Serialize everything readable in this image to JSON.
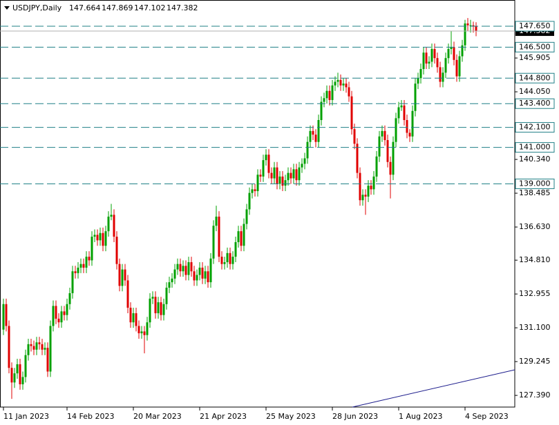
{
  "chart_data": {
    "type": "candlestick",
    "title": "USDJPY,Daily",
    "open": [
      131.0,
      132.4,
      131.2,
      128.9,
      128.1,
      128.6,
      129.1,
      128.0,
      128.4,
      129.6,
      130.2,
      130.1,
      129.9,
      130.3,
      130.2,
      129.9,
      130.0,
      128.7,
      131.2,
      132.3,
      131.6,
      131.4,
      132.0,
      131.8,
      132.4,
      133.0,
      134.2,
      134.1,
      134.4,
      134.6,
      134.4,
      135.0,
      134.8,
      136.1,
      136.2,
      135.9,
      136.3,
      135.6,
      136.4,
      137.2,
      137.3,
      136.1,
      134.6,
      133.4,
      134.3,
      133.7,
      132.2,
      131.4,
      131.9,
      131.2,
      130.8,
      130.9,
      130.7,
      131.4,
      132.7,
      132.8,
      131.9,
      132.5,
      131.8,
      132.4,
      133.3,
      133.6,
      133.8,
      134.3,
      134.6,
      134.2,
      134.5,
      134.0,
      134.7,
      134.2,
      133.7,
      134.0,
      134.4,
      133.8,
      134.2,
      133.6,
      134.9,
      136.7,
      137.2,
      135.0,
      134.6,
      134.7,
      135.2,
      134.6,
      135.0,
      135.8,
      136.4,
      135.6,
      136.8,
      137.6,
      138.5,
      138.7,
      138.6,
      139.5,
      139.4,
      140.3,
      140.6,
      139.6,
      139.3,
      139.9,
      139.0,
      139.4,
      138.9,
      139.2,
      139.6,
      139.3,
      139.8,
      139.2,
      139.9,
      140.1,
      140.4,
      141.3,
      141.9,
      141.7,
      141.3,
      142.5,
      143.5,
      143.7,
      144.1,
      143.6,
      144.4,
      144.6,
      144.7,
      144.4,
      144.5,
      144.3,
      143.8,
      142.0,
      141.2,
      139.6,
      138.1,
      138.4,
      138.3,
      138.9,
      138.7,
      139.4,
      140.5,
      141.6,
      141.9,
      141.4,
      140.2,
      139.5,
      141.3,
      142.6,
      143.2,
      143.3,
      142.5,
      141.8,
      141.6,
      143.0,
      144.5,
      144.8,
      145.3,
      146.2,
      145.6,
      145.7,
      146.4,
      145.9,
      145.4,
      144.6,
      145.1,
      145.9,
      146.4,
      146.5,
      145.8,
      144.9,
      146.0,
      146.6,
      147.8,
      147.7,
      147.7,
      147.664
    ],
    "high": [
      132.7,
      132.7,
      131.5,
      129.2,
      128.9,
      129.4,
      129.4,
      128.7,
      129.9,
      130.5,
      130.5,
      130.4,
      130.6,
      130.6,
      130.5,
      130.3,
      130.3,
      131.5,
      132.6,
      132.6,
      131.9,
      132.3,
      132.3,
      132.7,
      133.3,
      134.5,
      134.5,
      134.7,
      134.9,
      134.9,
      135.3,
      135.3,
      136.4,
      136.5,
      136.5,
      136.6,
      136.6,
      136.7,
      137.5,
      137.9,
      137.6,
      136.4,
      134.9,
      134.6,
      134.6,
      134.0,
      132.5,
      132.2,
      132.2,
      131.5,
      131.2,
      131.2,
      131.7,
      133.0,
      133.1,
      133.1,
      132.8,
      132.8,
      132.7,
      133.6,
      133.9,
      134.1,
      134.6,
      134.9,
      134.9,
      134.8,
      134.8,
      135.0,
      135.0,
      134.5,
      134.3,
      134.7,
      134.7,
      134.5,
      134.5,
      135.2,
      137.0,
      137.8,
      137.5,
      135.3,
      135.0,
      135.5,
      135.5,
      135.3,
      136.1,
      136.7,
      136.7,
      137.1,
      137.9,
      138.8,
      139.0,
      139.0,
      139.8,
      139.8,
      140.6,
      140.9,
      140.9,
      139.9,
      140.2,
      140.2,
      139.7,
      139.7,
      139.5,
      139.9,
      139.9,
      140.1,
      140.1,
      140.2,
      140.4,
      140.7,
      141.6,
      142.2,
      142.2,
      142.0,
      142.8,
      143.8,
      144.0,
      144.4,
      144.4,
      144.7,
      144.9,
      145.1,
      145.0,
      144.8,
      144.8,
      144.6,
      144.1,
      142.3,
      141.5,
      139.9,
      138.7,
      138.7,
      139.2,
      139.2,
      139.7,
      140.8,
      141.9,
      142.2,
      142.2,
      141.7,
      140.5,
      141.6,
      142.9,
      143.5,
      143.6,
      143.6,
      142.8,
      142.0,
      143.3,
      144.8,
      145.1,
      145.6,
      146.5,
      146.5,
      146.0,
      146.7,
      146.7,
      146.2,
      145.7,
      145.4,
      146.2,
      146.7,
      147.4,
      146.8,
      146.1,
      146.3,
      146.9,
      148.0,
      148.1,
      148.0,
      147.9,
      147.869
    ],
    "low": [
      130.7,
      130.9,
      128.6,
      127.2,
      127.8,
      128.3,
      127.7,
      127.7,
      128.1,
      129.3,
      129.8,
      129.6,
      129.6,
      129.9,
      129.6,
      129.6,
      128.4,
      128.4,
      130.9,
      131.3,
      131.1,
      131.1,
      131.5,
      131.5,
      132.1,
      132.7,
      133.8,
      133.8,
      134.1,
      134.1,
      134.1,
      134.5,
      134.5,
      135.8,
      135.6,
      135.6,
      135.3,
      135.3,
      136.1,
      137.0,
      135.8,
      134.3,
      133.1,
      133.1,
      133.4,
      131.9,
      131.1,
      131.1,
      130.9,
      130.5,
      130.5,
      129.7,
      130.4,
      131.1,
      132.4,
      131.6,
      131.6,
      131.5,
      131.5,
      132.1,
      133.0,
      133.3,
      133.5,
      134.0,
      133.9,
      133.9,
      133.7,
      133.7,
      133.9,
      133.4,
      133.4,
      133.7,
      133.5,
      133.5,
      133.3,
      133.3,
      134.6,
      136.4,
      134.7,
      134.3,
      134.3,
      134.4,
      134.3,
      134.3,
      134.7,
      135.5,
      135.3,
      135.3,
      136.5,
      137.3,
      138.2,
      138.3,
      138.3,
      139.1,
      139.1,
      140.0,
      139.3,
      139.0,
      139.0,
      138.7,
      138.7,
      138.6,
      138.6,
      138.9,
      139.0,
      139.0,
      138.9,
      138.9,
      139.6,
      139.8,
      140.1,
      141.0,
      141.4,
      141.0,
      141.0,
      142.2,
      143.2,
      143.4,
      143.3,
      143.3,
      144.1,
      144.3,
      144.1,
      144.1,
      144.0,
      143.5,
      141.7,
      140.9,
      139.3,
      137.8,
      137.8,
      137.3,
      138.0,
      138.4,
      138.4,
      139.1,
      140.2,
      141.3,
      141.1,
      139.9,
      138.2,
      139.2,
      141.0,
      142.3,
      143.0,
      142.2,
      141.5,
      141.3,
      141.3,
      142.7,
      144.2,
      144.5,
      145.0,
      145.3,
      145.3,
      145.4,
      145.6,
      145.1,
      144.3,
      144.3,
      144.8,
      145.6,
      146.1,
      145.5,
      144.6,
      144.6,
      145.7,
      146.3,
      147.4,
      147.3,
      147.3,
      147.102
    ],
    "close": [
      132.4,
      131.2,
      128.9,
      128.1,
      128.6,
      129.1,
      128.0,
      128.4,
      129.6,
      130.2,
      130.1,
      129.9,
      130.3,
      130.2,
      129.9,
      130.0,
      128.7,
      131.2,
      132.3,
      131.6,
      131.4,
      132.0,
      131.8,
      132.4,
      133.0,
      134.2,
      134.1,
      134.4,
      134.6,
      134.4,
      135.0,
      134.8,
      136.1,
      136.2,
      135.9,
      136.3,
      135.6,
      136.4,
      137.2,
      137.3,
      136.1,
      134.6,
      133.4,
      134.3,
      133.7,
      132.2,
      131.4,
      131.9,
      131.2,
      130.8,
      130.9,
      130.7,
      131.4,
      132.7,
      132.8,
      131.9,
      132.5,
      131.8,
      132.4,
      133.3,
      133.6,
      133.8,
      134.3,
      134.6,
      134.2,
      134.5,
      134.0,
      134.7,
      134.2,
      133.7,
      134.0,
      134.4,
      133.8,
      134.2,
      133.6,
      134.9,
      136.7,
      137.2,
      135.0,
      134.6,
      134.7,
      135.2,
      134.6,
      135.0,
      135.8,
      136.4,
      135.6,
      136.8,
      137.6,
      138.5,
      138.7,
      138.6,
      139.5,
      139.4,
      140.3,
      140.6,
      139.6,
      139.3,
      139.9,
      139.0,
      139.4,
      138.9,
      139.2,
      139.6,
      139.3,
      139.8,
      139.2,
      139.9,
      140.1,
      140.4,
      141.3,
      141.9,
      141.7,
      141.3,
      142.5,
      143.5,
      143.7,
      144.1,
      143.6,
      144.4,
      144.6,
      144.7,
      144.4,
      144.5,
      144.3,
      143.8,
      142.0,
      141.2,
      139.6,
      138.1,
      138.4,
      138.3,
      138.9,
      138.7,
      139.4,
      140.5,
      141.6,
      141.9,
      141.4,
      140.2,
      139.5,
      141.3,
      142.6,
      143.2,
      143.3,
      142.5,
      141.8,
      141.6,
      143.0,
      144.5,
      144.8,
      145.3,
      146.2,
      145.6,
      145.7,
      146.4,
      145.9,
      145.4,
      144.6,
      145.1,
      145.9,
      146.4,
      146.5,
      145.8,
      144.9,
      146.0,
      146.6,
      147.8,
      147.7,
      147.7,
      147.664,
      147.382
    ],
    "up_color": "#00a000",
    "down_color": "#e00000",
    "ylim": [
      126.75,
      149.05
    ],
    "yticks": [
      145.905,
      {
        "value": 144.05,
        "label": "144.050"
      },
      {
        "value": 140.34,
        "label": "140.340"
      },
      138.485,
      {
        "value": 136.63,
        "label": "136.630"
      },
      {
        "value": 134.81,
        "label": "134.810"
      },
      132.955,
      {
        "value": 131.1,
        "label": "131.100"
      },
      129.245,
      {
        "value": 127.39,
        "label": "127.390"
      }
    ],
    "levels": [
      {
        "value": 147.65,
        "label": "147.650"
      },
      {
        "value": 146.5,
        "label": "146.500"
      },
      {
        "value": 144.8,
        "label": "144.800"
      },
      {
        "value": 143.4,
        "label": "143.400"
      },
      {
        "value": 142.1,
        "label": "142.100"
      },
      {
        "value": 141.0,
        "label": "141.000"
      },
      {
        "value": 139.0,
        "label": "139.000"
      }
    ],
    "level_color": "#1f7f86",
    "xticks": [
      {
        "value": 0,
        "label": "11 Jan 2023"
      },
      {
        "value": 23,
        "label": "14 Feb 2023"
      },
      {
        "value": 47,
        "label": "20 Mar 2023"
      },
      {
        "value": 71,
        "label": "21 Apr 2023"
      },
      {
        "value": 95,
        "label": "25 May 2023"
      },
      {
        "value": 119,
        "label": "28 Jun 2023"
      },
      {
        "value": 143,
        "label": "1 Aug 2023"
      },
      {
        "value": 167,
        "label": "4 Sep 2023"
      }
    ],
    "grid": false
  }
}
